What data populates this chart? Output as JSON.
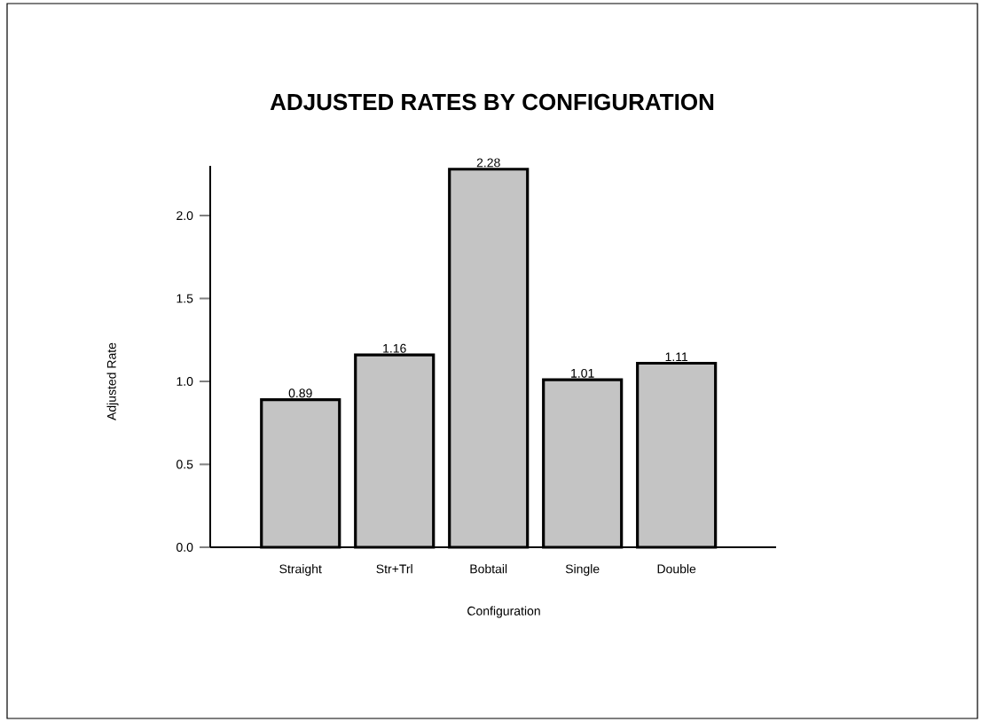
{
  "chart_data": {
    "type": "bar",
    "title": "ADJUSTED RATES BY CONFIGURATION",
    "xlabel": "Configuration",
    "ylabel": "Adjusted Rate",
    "categories": [
      "Straight",
      "Str+Trl",
      "Bobtail",
      "Single",
      "Double"
    ],
    "values": [
      0.89,
      1.16,
      2.28,
      1.01,
      1.11
    ],
    "color": "#c4c4c4",
    "ylim": [
      0,
      2.3
    ],
    "yticks": [
      {
        "value": 0,
        "label": "0.0"
      },
      {
        "value": 0.5,
        "label": "0.5"
      },
      {
        "value": 1,
        "label": "1.0"
      },
      {
        "value": 1.5,
        "label": "1.5"
      },
      {
        "value": 2,
        "label": "2.0"
      }
    ],
    "data_labels": true,
    "grid": false
  }
}
